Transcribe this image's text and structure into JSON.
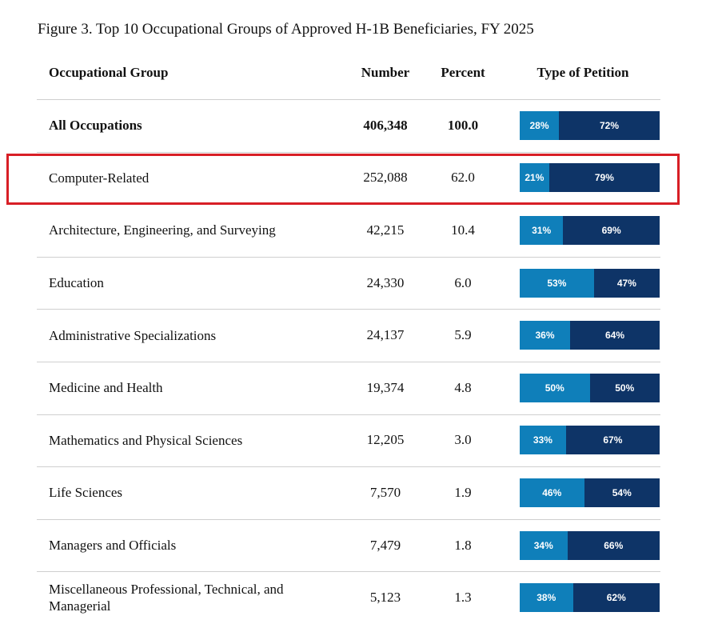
{
  "figure": {
    "title": "Figure 3. Top 10 Occupational Groups of Approved H-1B Beneficiaries, FY 2025",
    "columns": {
      "group": "Occupational Group",
      "number": "Number",
      "percent": "Percent",
      "petition": "Type of Petition"
    },
    "rows": [
      {
        "name": "All Occupations",
        "number": "406,348",
        "percent": "100.0",
        "a": "28%",
        "b": "72%",
        "a_val": 28,
        "b_val": 72
      },
      {
        "name": "Computer-Related",
        "number": "252,088",
        "percent": "62.0",
        "a": "21%",
        "b": "79%",
        "a_val": 21,
        "b_val": 79
      },
      {
        "name": "Architecture, Engineering, and Surveying",
        "number": "42,215",
        "percent": "10.4",
        "a": "31%",
        "b": "69%",
        "a_val": 31,
        "b_val": 69
      },
      {
        "name": "Education",
        "number": "24,330",
        "percent": "6.0",
        "a": "53%",
        "b": "47%",
        "a_val": 53,
        "b_val": 47
      },
      {
        "name": "Administrative Specializations",
        "number": "24,137",
        "percent": "5.9",
        "a": "36%",
        "b": "64%",
        "a_val": 36,
        "b_val": 64
      },
      {
        "name": "Medicine and Health",
        "number": "19,374",
        "percent": "4.8",
        "a": "50%",
        "b": "50%",
        "a_val": 50,
        "b_val": 50
      },
      {
        "name": "Mathematics and Physical Sciences",
        "number": "12,205",
        "percent": "3.0",
        "a": "33%",
        "b": "67%",
        "a_val": 33,
        "b_val": 67
      },
      {
        "name": "Life Sciences",
        "number": "7,570",
        "percent": "1.9",
        "a": "46%",
        "b": "54%",
        "a_val": 46,
        "b_val": 54
      },
      {
        "name": "Managers and Officials",
        "number": "7,479",
        "percent": "1.8",
        "a": "34%",
        "b": "66%",
        "a_val": 34,
        "b_val": 66
      },
      {
        "name": "Miscellaneous Professional, Technical, and Managerial",
        "number": "5,123",
        "percent": "1.3",
        "a": "38%",
        "b": "62%",
        "a_val": 38,
        "b_val": 62
      }
    ]
  },
  "colors": {
    "segment_a": "#0f7fba",
    "segment_b": "#0e3467",
    "highlight": "#d81f26"
  }
}
